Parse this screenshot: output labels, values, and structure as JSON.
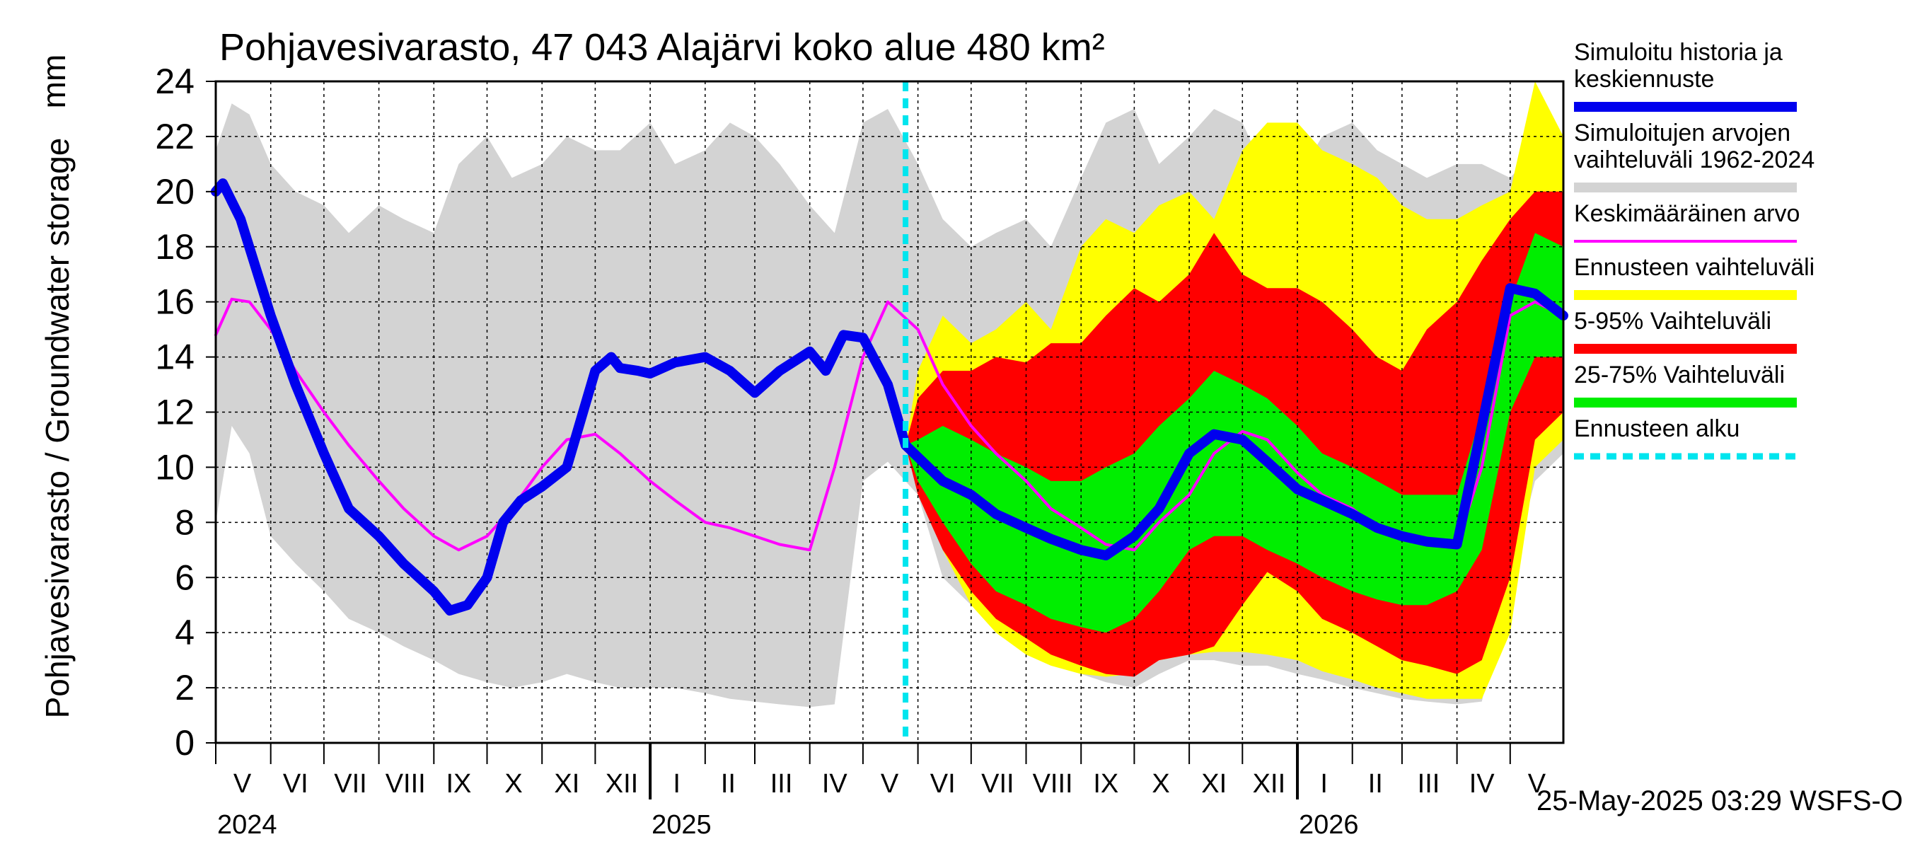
{
  "chart_data": {
    "type": "area",
    "title": "Pohjavesivarasto, 47 043 Alajärvi koko alue 480 km²",
    "ylabel": "Pohjavesivarasto / Groundwater storage",
    "yunit": "mm",
    "ylim": [
      0,
      24
    ],
    "yticks": [
      0,
      2,
      4,
      6,
      8,
      10,
      12,
      14,
      16,
      18,
      20,
      22,
      24
    ],
    "xlim": [
      "2024-05-01",
      "2026-05-31"
    ],
    "grid": true,
    "legend_position": "right",
    "month_labels": [
      {
        "label": "V",
        "date": "2024-05-16"
      },
      {
        "label": "VI",
        "date": "2024-06-15"
      },
      {
        "label": "VII",
        "date": "2024-07-16"
      },
      {
        "label": "VIII",
        "date": "2024-08-16"
      },
      {
        "label": "IX",
        "date": "2024-09-15"
      },
      {
        "label": "X",
        "date": "2024-10-16"
      },
      {
        "label": "XI",
        "date": "2024-11-15"
      },
      {
        "label": "XII",
        "date": "2024-12-16"
      },
      {
        "label": "I",
        "date": "2025-01-16"
      },
      {
        "label": "II",
        "date": "2025-02-14"
      },
      {
        "label": "III",
        "date": "2025-03-16"
      },
      {
        "label": "IV",
        "date": "2025-04-15"
      },
      {
        "label": "V",
        "date": "2025-05-16"
      },
      {
        "label": "VI",
        "date": "2025-06-15"
      },
      {
        "label": "VII",
        "date": "2025-07-16"
      },
      {
        "label": "VIII",
        "date": "2025-08-16"
      },
      {
        "label": "IX",
        "date": "2025-09-15"
      },
      {
        "label": "X",
        "date": "2025-10-16"
      },
      {
        "label": "XI",
        "date": "2025-11-15"
      },
      {
        "label": "XII",
        "date": "2025-12-16"
      },
      {
        "label": "I",
        "date": "2026-01-16"
      },
      {
        "label": "II",
        "date": "2026-02-14"
      },
      {
        "label": "III",
        "date": "2026-03-16"
      },
      {
        "label": "IV",
        "date": "2026-04-15"
      },
      {
        "label": "V",
        "date": "2026-05-16"
      }
    ],
    "year_labels": [
      {
        "label": "2024",
        "date": "2024-05-01"
      },
      {
        "label": "2025",
        "date": "2025-01-01"
      },
      {
        "label": "2026",
        "date": "2026-01-01"
      }
    ],
    "forecast_start": "2025-05-25",
    "footer": "25-May-2025 03:29 WSFS-O",
    "series": [
      {
        "name": "Simuloitujen arvojen vaihteluväli 1962-2024",
        "type": "band",
        "color": "#d3d3d3",
        "x": [
          "2024-05-01",
          "2024-05-10",
          "2024-05-20",
          "2024-06-01",
          "2024-06-15",
          "2024-07-01",
          "2024-07-15",
          "2024-08-01",
          "2024-08-15",
          "2024-09-01",
          "2024-09-15",
          "2024-10-01",
          "2024-10-15",
          "2024-11-01",
          "2024-11-15",
          "2024-12-01",
          "2024-12-15",
          "2025-01-01",
          "2025-01-15",
          "2025-02-01",
          "2025-02-15",
          "2025-03-01",
          "2025-03-15",
          "2025-04-01",
          "2025-04-15",
          "2025-05-01",
          "2025-05-15",
          "2025-06-01",
          "2025-06-15",
          "2025-07-01",
          "2025-07-15",
          "2025-08-01",
          "2025-08-15",
          "2025-09-01",
          "2025-09-15",
          "2025-10-01",
          "2025-10-15",
          "2025-11-01",
          "2025-11-15",
          "2025-12-01",
          "2025-12-15",
          "2026-01-01",
          "2026-01-15",
          "2026-02-01",
          "2026-02-15",
          "2026-03-01",
          "2026-03-15",
          "2026-04-01",
          "2026-04-15",
          "2026-05-01",
          "2026-05-15",
          "2026-05-31"
        ],
        "upper": [
          21.5,
          23.2,
          22.8,
          21.0,
          20.0,
          19.5,
          18.5,
          19.5,
          19.0,
          18.5,
          21.0,
          22.0,
          20.5,
          21.0,
          22.0,
          21.5,
          21.5,
          22.5,
          21.0,
          21.5,
          22.5,
          22.0,
          21.0,
          19.5,
          18.5,
          22.5,
          23.0,
          21.0,
          19.0,
          18.0,
          18.5,
          19.0,
          18.0,
          20.5,
          22.5,
          23.0,
          21.0,
          22.0,
          23.0,
          22.5,
          20.5,
          20.5,
          22.0,
          22.5,
          21.5,
          21.0,
          20.5,
          21.0,
          21.0,
          20.5,
          21.5,
          22.0
        ],
        "lower": [
          8.0,
          11.5,
          10.5,
          7.5,
          6.5,
          5.5,
          4.5,
          4.0,
          3.5,
          3.0,
          2.5,
          2.2,
          2.0,
          2.2,
          2.5,
          2.2,
          2.0,
          2.0,
          2.0,
          1.8,
          1.6,
          1.5,
          1.4,
          1.3,
          1.4,
          9.5,
          10.2,
          9.0,
          6.0,
          5.0,
          4.5,
          3.5,
          3.0,
          2.5,
          2.2,
          2.0,
          2.5,
          3.0,
          3.0,
          2.8,
          2.8,
          2.5,
          2.3,
          2.0,
          1.8,
          1.6,
          1.5,
          1.4,
          1.5,
          6.0,
          9.5,
          10.5
        ]
      },
      {
        "name": "Ennusteen vaihteluväli",
        "type": "band",
        "color": "#ffff00",
        "x": [
          "2025-05-25",
          "2025-06-01",
          "2025-06-15",
          "2025-07-01",
          "2025-07-15",
          "2025-08-01",
          "2025-08-15",
          "2025-09-01",
          "2025-09-15",
          "2025-10-01",
          "2025-10-15",
          "2025-11-01",
          "2025-11-15",
          "2025-12-01",
          "2025-12-15",
          "2026-01-01",
          "2026-01-15",
          "2026-02-01",
          "2026-02-15",
          "2026-03-01",
          "2026-03-15",
          "2026-04-01",
          "2026-04-15",
          "2026-05-01",
          "2026-05-15",
          "2026-05-31"
        ],
        "upper": [
          10.8,
          13.5,
          15.5,
          14.5,
          15.0,
          16.0,
          15.0,
          18.0,
          19.0,
          18.5,
          19.5,
          20.0,
          19.0,
          21.5,
          22.5,
          22.5,
          21.5,
          21.0,
          20.5,
          19.5,
          19.0,
          19.0,
          19.5,
          20.0,
          24.0,
          22.0
        ],
        "lower": [
          10.8,
          9.5,
          7.0,
          5.0,
          4.0,
          3.2,
          2.8,
          2.5,
          2.4,
          2.5,
          3.0,
          3.2,
          3.3,
          3.3,
          3.2,
          3.0,
          2.6,
          2.3,
          2.0,
          1.8,
          1.6,
          1.6,
          1.6,
          4.0,
          10.0,
          11.0
        ]
      },
      {
        "name": "5-95% Vaihteluväli",
        "type": "band",
        "color": "#ff0000",
        "x": [
          "2025-05-25",
          "2025-06-01",
          "2025-06-15",
          "2025-07-01",
          "2025-07-15",
          "2025-08-01",
          "2025-08-15",
          "2025-09-01",
          "2025-09-15",
          "2025-10-01",
          "2025-10-15",
          "2025-11-01",
          "2025-11-15",
          "2025-12-01",
          "2025-12-15",
          "2026-01-01",
          "2026-01-15",
          "2026-02-01",
          "2026-02-15",
          "2026-03-01",
          "2026-03-15",
          "2026-04-01",
          "2026-04-15",
          "2026-05-01",
          "2026-05-15",
          "2026-05-31"
        ],
        "upper": [
          10.8,
          12.5,
          13.5,
          13.5,
          14.0,
          13.8,
          14.5,
          14.5,
          15.5,
          16.5,
          16.0,
          17.0,
          18.5,
          17.0,
          16.5,
          16.5,
          16.0,
          15.0,
          14.0,
          13.5,
          15.0,
          16.0,
          17.5,
          19.0,
          20.0,
          20.0
        ],
        "lower": [
          10.8,
          9.0,
          7.0,
          5.5,
          4.5,
          3.8,
          3.2,
          2.8,
          2.5,
          2.4,
          3.0,
          3.2,
          3.5,
          5.0,
          6.2,
          5.5,
          4.5,
          4.0,
          3.5,
          3.0,
          2.8,
          2.5,
          3.0,
          6.0,
          11.0,
          12.0
        ]
      },
      {
        "name": "25-75% Vaihteluväli",
        "type": "band",
        "color": "#00ee00",
        "x": [
          "2025-05-25",
          "2025-06-01",
          "2025-06-15",
          "2025-07-01",
          "2025-07-15",
          "2025-08-01",
          "2025-08-15",
          "2025-09-01",
          "2025-09-15",
          "2025-10-01",
          "2025-10-15",
          "2025-11-01",
          "2025-11-15",
          "2025-12-01",
          "2025-12-15",
          "2026-01-01",
          "2026-01-15",
          "2026-02-01",
          "2026-02-15",
          "2026-03-01",
          "2026-03-15",
          "2026-04-01",
          "2026-04-15",
          "2026-05-01",
          "2026-05-15",
          "2026-05-31"
        ],
        "upper": [
          10.8,
          11.0,
          11.5,
          11.0,
          10.5,
          10.0,
          9.5,
          9.5,
          10.0,
          10.5,
          11.5,
          12.5,
          13.5,
          13.0,
          12.5,
          11.5,
          10.5,
          10.0,
          9.5,
          9.0,
          9.0,
          9.0,
          12.0,
          16.0,
          18.5,
          18.0
        ],
        "lower": [
          10.8,
          9.5,
          8.0,
          6.5,
          5.5,
          5.0,
          4.5,
          4.2,
          4.0,
          4.5,
          5.5,
          7.0,
          7.5,
          7.5,
          7.0,
          6.5,
          6.0,
          5.5,
          5.2,
          5.0,
          5.0,
          5.5,
          7.0,
          12.0,
          14.0,
          14.0
        ]
      },
      {
        "name": "Keskimääräinen arvo",
        "type": "line",
        "color": "#ff00ff",
        "x": [
          "2024-05-01",
          "2024-05-10",
          "2024-05-20",
          "2024-06-01",
          "2024-06-15",
          "2024-07-01",
          "2024-07-15",
          "2024-08-01",
          "2024-08-15",
          "2024-09-01",
          "2024-09-15",
          "2024-10-01",
          "2024-10-15",
          "2024-11-01",
          "2024-11-15",
          "2024-12-01",
          "2024-12-15",
          "2025-01-01",
          "2025-01-15",
          "2025-02-01",
          "2025-02-15",
          "2025-03-01",
          "2025-03-15",
          "2025-04-01",
          "2025-04-15",
          "2025-05-01",
          "2025-05-15",
          "2025-06-01",
          "2025-06-15",
          "2025-07-01",
          "2025-07-15",
          "2025-08-01",
          "2025-08-15",
          "2025-09-01",
          "2025-09-15",
          "2025-10-01",
          "2025-10-15",
          "2025-11-01",
          "2025-11-15",
          "2025-12-01",
          "2025-12-15",
          "2026-01-01",
          "2026-01-15",
          "2026-02-01",
          "2026-02-15",
          "2026-03-01",
          "2026-03-15",
          "2026-04-01",
          "2026-04-15",
          "2026-05-01",
          "2026-05-15",
          "2026-05-31"
        ],
        "values": [
          14.8,
          16.1,
          16.0,
          15.0,
          13.5,
          12.0,
          10.8,
          9.5,
          8.5,
          7.5,
          7.0,
          7.5,
          8.5,
          10.0,
          11.0,
          11.2,
          10.5,
          9.5,
          8.8,
          8.0,
          7.8,
          7.5,
          7.2,
          7.0,
          10.0,
          14.0,
          16.0,
          15.0,
          13.0,
          11.5,
          10.5,
          9.5,
          8.5,
          7.8,
          7.2,
          7.0,
          8.0,
          9.0,
          10.5,
          11.3,
          11.0,
          9.8,
          9.0,
          8.5,
          7.8,
          7.5,
          7.3,
          7.2,
          10.0,
          15.5,
          16.0,
          15.5
        ]
      },
      {
        "name": "Simuloitu historia ja keskiennuste",
        "type": "line",
        "color": "#0000ee",
        "x": [
          "2024-05-01",
          "2024-05-05",
          "2024-05-15",
          "2024-06-01",
          "2024-06-15",
          "2024-07-01",
          "2024-07-15",
          "2024-08-01",
          "2024-08-15",
          "2024-09-01",
          "2024-09-10",
          "2024-09-20",
          "2024-10-01",
          "2024-10-10",
          "2024-10-20",
          "2024-11-01",
          "2024-11-15",
          "2024-12-01",
          "2024-12-10",
          "2024-12-15",
          "2024-12-25",
          "2025-01-01",
          "2025-01-15",
          "2025-02-01",
          "2025-02-15",
          "2025-03-01",
          "2025-03-15",
          "2025-04-01",
          "2025-04-10",
          "2025-04-20",
          "2025-05-01",
          "2025-05-15",
          "2025-05-25",
          "2025-06-15",
          "2025-07-01",
          "2025-07-15",
          "2025-08-01",
          "2025-08-15",
          "2025-09-01",
          "2025-09-15",
          "2025-10-01",
          "2025-10-15",
          "2025-11-01",
          "2025-11-15",
          "2025-12-01",
          "2025-12-15",
          "2026-01-01",
          "2026-01-15",
          "2026-02-01",
          "2026-02-15",
          "2026-03-01",
          "2026-03-15",
          "2026-04-01",
          "2026-04-15",
          "2026-05-01",
          "2026-05-15",
          "2026-05-31"
        ],
        "values": [
          20.0,
          20.3,
          19.0,
          15.5,
          13.0,
          10.5,
          8.5,
          7.5,
          6.5,
          5.5,
          4.8,
          5.0,
          6.0,
          8.0,
          8.8,
          9.3,
          10.0,
          13.5,
          14.0,
          13.6,
          13.5,
          13.4,
          13.8,
          14.0,
          13.5,
          12.7,
          13.5,
          14.2,
          13.5,
          14.8,
          14.7,
          13.0,
          10.8,
          9.5,
          9.0,
          8.3,
          7.8,
          7.4,
          7.0,
          6.8,
          7.5,
          8.5,
          10.5,
          11.2,
          11.0,
          10.2,
          9.2,
          8.8,
          8.3,
          7.8,
          7.5,
          7.3,
          7.2,
          11.5,
          16.5,
          16.3,
          15.5
        ]
      }
    ],
    "legend": [
      {
        "label": "Simuloitu historia ja\nkeskiennuste",
        "color": "#0000ee",
        "style": "solid"
      },
      {
        "label": "Simuloitujen arvojen\nvaihteluväli 1962-2024",
        "color": "#d3d3d3",
        "style": "solid"
      },
      {
        "label": "Keskimääräinen arvo",
        "color": "#ff00ff",
        "style": "thin"
      },
      {
        "label": "Ennusteen vaihteluväli",
        "color": "#ffff00",
        "style": "solid"
      },
      {
        "label": "5-95% Vaihteluväli",
        "color": "#ff0000",
        "style": "solid"
      },
      {
        "label": "25-75% Vaihteluväli",
        "color": "#00ee00",
        "style": "solid"
      },
      {
        "label": "Ennusteen alku",
        "color": "#00e5ee",
        "style": "dashed"
      }
    ]
  }
}
